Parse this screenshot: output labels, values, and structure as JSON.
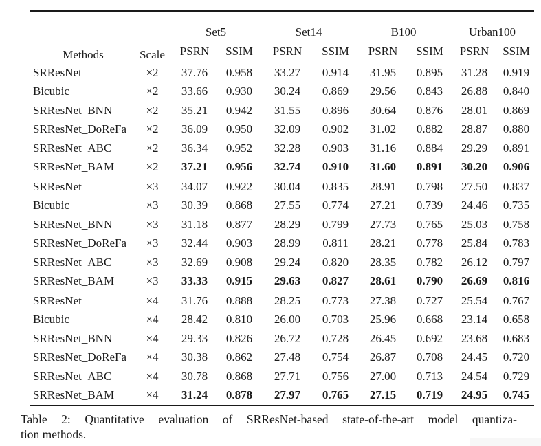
{
  "table": {
    "methods_header": "Methods",
    "scale_header": "Scale",
    "datasets": [
      "Set5",
      "Set14",
      "B100",
      "Urban100"
    ],
    "metrics": [
      "PSRN",
      "SSIM"
    ],
    "groups": [
      {
        "scale": "×2",
        "rows": [
          {
            "method": "SRResNet",
            "scale": "×2",
            "bold": false,
            "values": [
              "37.76",
              "0.958",
              "33.27",
              "0.914",
              "31.95",
              "0.895",
              "31.28",
              "0.919"
            ]
          },
          {
            "method": "Bicubic",
            "scale": "×2",
            "bold": false,
            "values": [
              "33.66",
              "0.930",
              "30.24",
              "0.869",
              "29.56",
              "0.843",
              "26.88",
              "0.840"
            ]
          },
          {
            "method": "SRResNet_BNN",
            "scale": "×2",
            "bold": false,
            "values": [
              "35.21",
              "0.942",
              "31.55",
              "0.896",
              "30.64",
              "0.876",
              "28.01",
              "0.869"
            ]
          },
          {
            "method": "SRResNet_DoReFa",
            "scale": "×2",
            "bold": false,
            "values": [
              "36.09",
              "0.950",
              "32.09",
              "0.902",
              "31.02",
              "0.882",
              "28.87",
              "0.880"
            ]
          },
          {
            "method": "SRResNet_ABC",
            "scale": "×2",
            "bold": false,
            "values": [
              "36.34",
              "0.952",
              "32.28",
              "0.903",
              "31.16",
              "0.884",
              "29.29",
              "0.891"
            ]
          },
          {
            "method": "SRResNet_BAM",
            "scale": "×2",
            "bold": true,
            "values": [
              "37.21",
              "0.956",
              "32.74",
              "0.910",
              "31.60",
              "0.891",
              "30.20",
              "0.906"
            ]
          }
        ]
      },
      {
        "scale": "×3",
        "rows": [
          {
            "method": "SRResNet",
            "scale": "×3",
            "bold": false,
            "values": [
              "34.07",
              "0.922",
              "30.04",
              "0.835",
              "28.91",
              "0.798",
              "27.50",
              "0.837"
            ]
          },
          {
            "method": "Bicubic",
            "scale": "×3",
            "bold": false,
            "values": [
              "30.39",
              "0.868",
              "27.55",
              "0.774",
              "27.21",
              "0.739",
              "24.46",
              "0.735"
            ]
          },
          {
            "method": "SRResNet_BNN",
            "scale": "×3",
            "bold": false,
            "values": [
              "31.18",
              "0.877",
              "28.29",
              "0.799",
              "27.73",
              "0.765",
              "25.03",
              "0.758"
            ]
          },
          {
            "method": "SRResNet_DoReFa",
            "scale": "×3",
            "bold": false,
            "values": [
              "32.44",
              "0.903",
              "28.99",
              "0.811",
              "28.21",
              "0.778",
              "25.84",
              "0.783"
            ]
          },
          {
            "method": "SRResNet_ABC",
            "scale": "×3",
            "bold": false,
            "values": [
              "32.69",
              "0.908",
              "29.24",
              "0.820",
              "28.35",
              "0.782",
              "26.12",
              "0.797"
            ]
          },
          {
            "method": "SRResNet_BAM",
            "scale": "×3",
            "bold": true,
            "values": [
              "33.33",
              "0.915",
              "29.63",
              "0.827",
              "28.61",
              "0.790",
              "26.69",
              "0.816"
            ]
          }
        ]
      },
      {
        "scale": "×4",
        "rows": [
          {
            "method": "SRResNet",
            "scale": "×4",
            "bold": false,
            "values": [
              "31.76",
              "0.888",
              "28.25",
              "0.773",
              "27.38",
              "0.727",
              "25.54",
              "0.767"
            ]
          },
          {
            "method": "Bicubic",
            "scale": "×4",
            "bold": false,
            "values": [
              "28.42",
              "0.810",
              "26.00",
              "0.703",
              "25.96",
              "0.668",
              "23.14",
              "0.658"
            ]
          },
          {
            "method": "SRResNet_BNN",
            "scale": "×4",
            "bold": false,
            "values": [
              "29.33",
              "0.826",
              "26.72",
              "0.728",
              "26.45",
              "0.692",
              "23.68",
              "0.683"
            ]
          },
          {
            "method": "SRResNet_DoReFa",
            "scale": "×4",
            "bold": false,
            "values": [
              "30.38",
              "0.862",
              "27.48",
              "0.754",
              "26.87",
              "0.708",
              "24.45",
              "0.720"
            ]
          },
          {
            "method": "SRResNet_ABC",
            "scale": "×4",
            "bold": false,
            "values": [
              "30.78",
              "0.868",
              "27.71",
              "0.756",
              "27.00",
              "0.713",
              "24.54",
              "0.729"
            ]
          },
          {
            "method": "SRResNet_BAM",
            "scale": "×4",
            "bold": true,
            "values": [
              "31.24",
              "0.878",
              "27.97",
              "0.765",
              "27.15",
              "0.719",
              "24.95",
              "0.745"
            ]
          }
        ]
      }
    ]
  },
  "caption": {
    "line1": "Table 2: Quantitative evaluation of SRResNet-based state-of-the-art model quantiza-",
    "line2": "tion methods."
  }
}
